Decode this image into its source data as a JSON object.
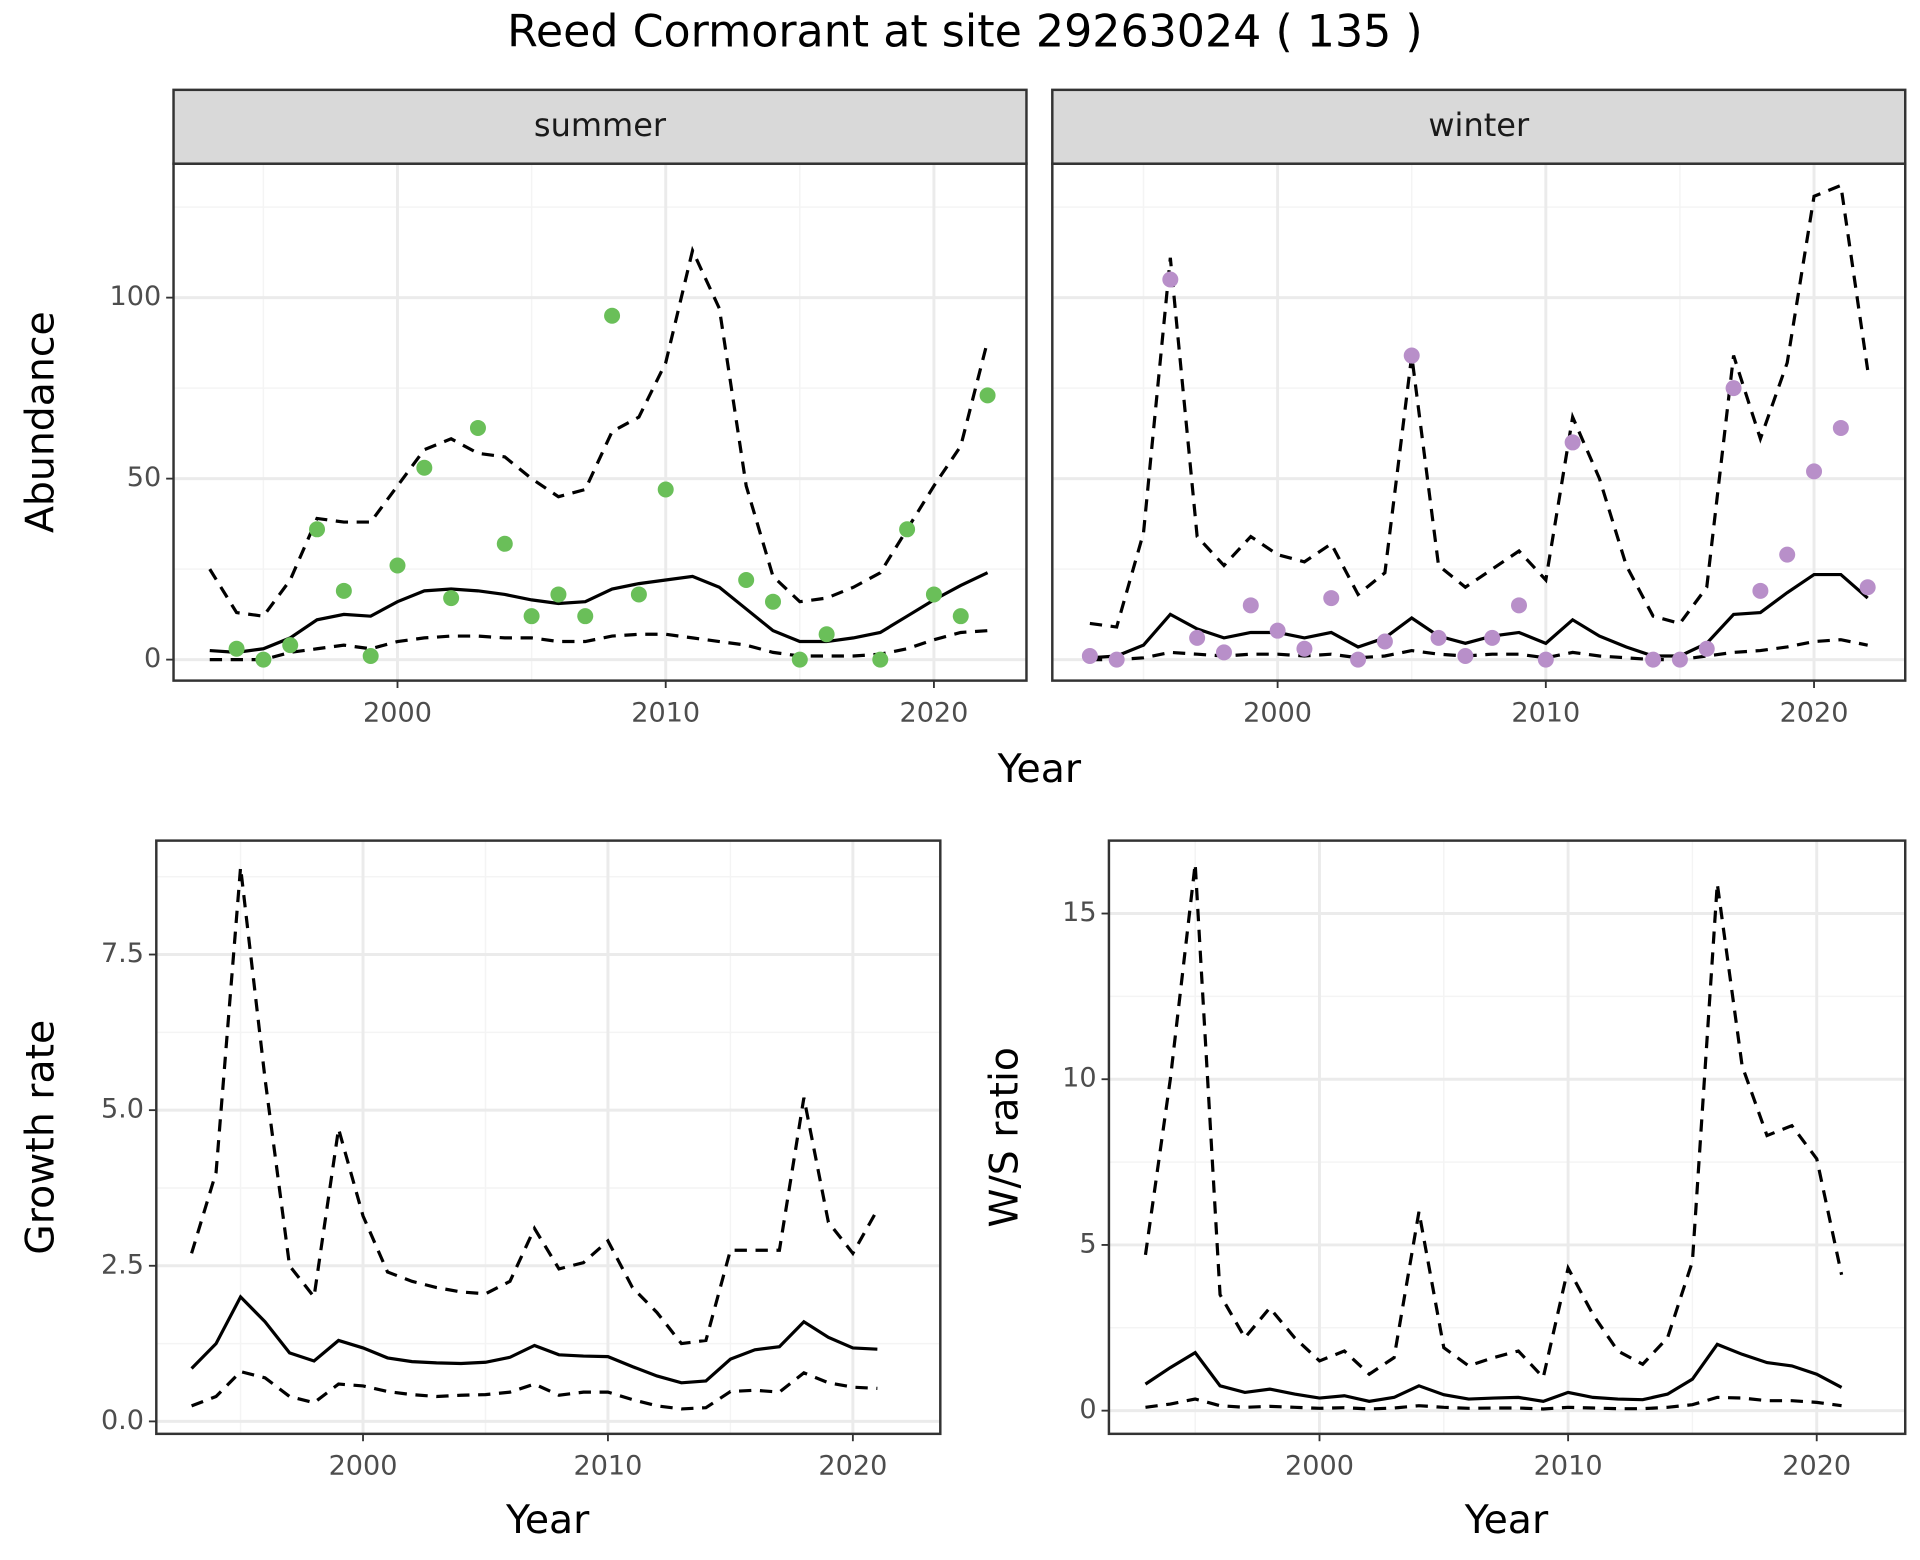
{
  "title": "Reed Cormorant at site 29263024 ( 135 )",
  "chart_data": [
    {
      "type": "line",
      "panel": "summer",
      "xlabel": "Year",
      "ylabel": "Abundance",
      "x": [
        1993,
        1994,
        1995,
        1996,
        1997,
        1998,
        1999,
        2000,
        2001,
        2002,
        2003,
        2004,
        2005,
        2006,
        2007,
        2008,
        2009,
        2010,
        2011,
        2012,
        2013,
        2014,
        2015,
        2016,
        2017,
        2018,
        2019,
        2020,
        2021,
        2022
      ],
      "xlim": [
        1991.65,
        2023.45
      ],
      "ylim": [
        -5.8,
        137
      ],
      "xticks": [
        2000,
        2010,
        2020
      ],
      "yticks": [
        0,
        50,
        100
      ],
      "minor_xticks": [
        1995,
        2005,
        2015
      ],
      "minor_yticks": [
        25,
        75,
        125
      ],
      "grid": true,
      "series": [
        {
          "color": "#000000",
          "dash": "dashed",
          "values": [
            0,
            0,
            0,
            2,
            3,
            4,
            3,
            5,
            6,
            6.5,
            6.5,
            6,
            6,
            5,
            5,
            6.5,
            7,
            7,
            6,
            5,
            4,
            2,
            1,
            1,
            1,
            1.5,
            3,
            5.5,
            7.5,
            8
          ]
        },
        {
          "color": "#000000",
          "dash": "dashed",
          "values": [
            25,
            13,
            12,
            22,
            39,
            38,
            38,
            48,
            58,
            61,
            57,
            56,
            50,
            45,
            47,
            63,
            67,
            82,
            113,
            97,
            48,
            23,
            16,
            17,
            20,
            24,
            36,
            48,
            59,
            88
          ]
        },
        {
          "color": "#000000",
          "dash": "solid",
          "values": [
            2.5,
            2,
            3,
            6,
            11,
            12.5,
            12,
            16,
            19,
            19.5,
            19,
            18,
            16.5,
            15.5,
            16,
            19.5,
            21,
            22,
            23,
            20,
            14,
            8,
            5,
            5,
            6,
            7.5,
            12,
            16.5,
            20.5,
            24
          ]
        },
        {
          "color": "#6abf59",
          "mark": "point",
          "values": [
            null,
            3,
            0,
            4,
            36,
            19,
            1,
            26,
            53,
            17,
            64,
            32,
            12,
            18,
            12,
            95,
            18,
            47,
            null,
            null,
            22,
            16,
            0,
            7,
            null,
            0,
            36,
            18,
            12,
            73
          ]
        }
      ]
    },
    {
      "type": "line",
      "panel": "winter",
      "x": [
        1993,
        1994,
        1995,
        1996,
        1997,
        1998,
        1999,
        2000,
        2001,
        2002,
        2003,
        2004,
        2005,
        2006,
        2007,
        2008,
        2009,
        2010,
        2011,
        2012,
        2013,
        2014,
        2015,
        2016,
        2017,
        2018,
        2019,
        2020,
        2021,
        2022
      ],
      "xlim": [
        1991.6,
        2023.4
      ],
      "ylim": [
        -5.8,
        137
      ],
      "xticks": [
        2000,
        2010,
        2020
      ],
      "yticks": [
        0,
        50,
        100
      ],
      "minor_xticks": [
        1995,
        2005,
        2015
      ],
      "minor_yticks": [
        25,
        75,
        125
      ],
      "grid": true,
      "series": [
        {
          "color": "#000000",
          "dash": "dashed",
          "values": [
            0,
            0,
            0.5,
            2,
            1.5,
            1,
            1.5,
            1.5,
            1,
            1.5,
            0.5,
            1,
            2.5,
            1.5,
            1,
            1.5,
            1.5,
            0.5,
            2,
            1,
            0.5,
            0,
            0,
            1,
            2,
            2.5,
            3.5,
            5,
            5.5,
            4
          ]
        },
        {
          "color": "#000000",
          "dash": "dashed",
          "values": [
            10,
            9,
            35,
            111,
            34,
            26,
            34,
            29,
            27,
            32,
            18,
            24,
            84,
            26,
            20,
            25,
            30,
            22,
            67,
            50,
            26,
            12,
            10,
            20,
            84,
            61,
            82,
            128,
            131,
            80
          ]
        },
        {
          "color": "#000000",
          "dash": "solid",
          "values": [
            0.5,
            1,
            4,
            12.5,
            8.5,
            6,
            7.5,
            7.5,
            6,
            7.5,
            3.5,
            6,
            11.5,
            6.5,
            4.5,
            6.5,
            7.5,
            4.5,
            11,
            6.5,
            3.5,
            1,
            1,
            4.5,
            12.5,
            13,
            18.5,
            23.5,
            23.5,
            17
          ]
        },
        {
          "color": "#b88fc9",
          "mark": "point",
          "values": [
            1,
            0,
            null,
            105,
            6,
            2,
            15,
            8,
            3,
            17,
            0,
            5,
            84,
            6,
            1,
            6,
            15,
            0,
            60,
            null,
            null,
            0,
            0,
            3,
            75,
            19,
            29,
            52,
            64,
            20
          ]
        }
      ]
    },
    {
      "type": "line",
      "xlabel": "Year",
      "ylabel": "Growth rate",
      "x": [
        1993,
        1994,
        1995,
        1996,
        1997,
        1998,
        1999,
        2000,
        2001,
        2002,
        2003,
        2004,
        2005,
        2006,
        2007,
        2008,
        2009,
        2010,
        2011,
        2012,
        2013,
        2014,
        2015,
        2016,
        2017,
        2018,
        2019,
        2020,
        2021
      ],
      "xlim": [
        1991.56,
        2023.57
      ],
      "ylim": [
        -0.2,
        9.33
      ],
      "xticks": [
        2000,
        2010,
        2020
      ],
      "yticks": [
        {
          "value": 0,
          "label": "0.0"
        },
        2.5,
        {
          "value": 5,
          "label": "5.0"
        },
        7.5
      ],
      "minor_xticks": [
        1995,
        2005,
        2015
      ],
      "minor_yticks": [
        1.25,
        3.75,
        6.25,
        8.75
      ],
      "grid": true,
      "series": [
        {
          "color": "#000000",
          "dash": "dashed",
          "values": [
            0.25,
            0.4,
            0.8,
            0.7,
            0.4,
            0.3,
            0.6,
            0.57,
            0.48,
            0.43,
            0.4,
            0.42,
            0.43,
            0.47,
            0.6,
            0.42,
            0.47,
            0.47,
            0.35,
            0.25,
            0.2,
            0.22,
            0.48,
            0.5,
            0.47,
            0.78,
            0.62,
            0.55,
            0.53
          ]
        },
        {
          "color": "#000000",
          "dash": "dashed",
          "values": [
            2.7,
            4.0,
            8.9,
            5.5,
            2.5,
            2.0,
            4.7,
            3.3,
            2.4,
            2.25,
            2.15,
            2.08,
            2.05,
            2.25,
            3.1,
            2.45,
            2.55,
            2.9,
            2.15,
            1.75,
            1.25,
            1.3,
            2.75,
            2.75,
            2.75,
            5.2,
            3.2,
            2.7,
            3.4
          ]
        },
        {
          "color": "#000000",
          "dash": "solid",
          "values": [
            0.85,
            1.25,
            2.0,
            1.6,
            1.1,
            0.97,
            1.3,
            1.18,
            1.02,
            0.96,
            0.94,
            0.93,
            0.95,
            1.03,
            1.22,
            1.07,
            1.05,
            1.04,
            0.88,
            0.73,
            0.62,
            0.65,
            1.0,
            1.15,
            1.2,
            1.6,
            1.35,
            1.18,
            1.16
          ]
        }
      ]
    },
    {
      "type": "line",
      "xlabel": "Year",
      "ylabel": "W/S ratio",
      "x": [
        1993,
        1994,
        1995,
        1996,
        1997,
        1998,
        1999,
        2000,
        2001,
        2002,
        2003,
        2004,
        2005,
        2006,
        2007,
        2008,
        2009,
        2010,
        2011,
        2012,
        2013,
        2014,
        2015,
        2016,
        2017,
        2018,
        2019,
        2020,
        2021
      ],
      "xlim": [
        1991.53,
        2023.56
      ],
      "ylim": [
        -0.7,
        17.2
      ],
      "xticks": [
        2000,
        2010,
        2020
      ],
      "yticks": [
        0,
        5,
        10,
        15
      ],
      "minor_xticks": [
        1995,
        2005,
        2015
      ],
      "minor_yticks": [
        2.5,
        7.5,
        12.5
      ],
      "grid": true,
      "series": [
        {
          "color": "#000000",
          "dash": "dashed",
          "values": [
            0.1,
            0.2,
            0.35,
            0.15,
            0.1,
            0.13,
            0.1,
            0.07,
            0.09,
            0.05,
            0.08,
            0.15,
            0.1,
            0.07,
            0.08,
            0.08,
            0.05,
            0.1,
            0.08,
            0.06,
            0.06,
            0.1,
            0.18,
            0.4,
            0.38,
            0.3,
            0.3,
            0.25,
            0.15
          ]
        },
        {
          "color": "#000000",
          "dash": "dashed",
          "values": [
            4.7,
            10.0,
            16.5,
            3.5,
            2.2,
            3.1,
            2.2,
            1.5,
            1.8,
            1.1,
            1.6,
            6.0,
            1.9,
            1.35,
            1.6,
            1.8,
            1.0,
            4.3,
            2.9,
            1.8,
            1.4,
            2.2,
            4.5,
            15.9,
            10.4,
            8.3,
            8.6,
            7.6,
            4.1
          ]
        },
        {
          "color": "#000000",
          "dash": "solid",
          "values": [
            0.8,
            1.3,
            1.75,
            0.75,
            0.55,
            0.65,
            0.5,
            0.38,
            0.45,
            0.28,
            0.4,
            0.75,
            0.48,
            0.35,
            0.38,
            0.4,
            0.28,
            0.55,
            0.4,
            0.35,
            0.33,
            0.5,
            0.95,
            2.0,
            1.7,
            1.45,
            1.35,
            1.1,
            0.7
          ]
        }
      ]
    }
  ]
}
